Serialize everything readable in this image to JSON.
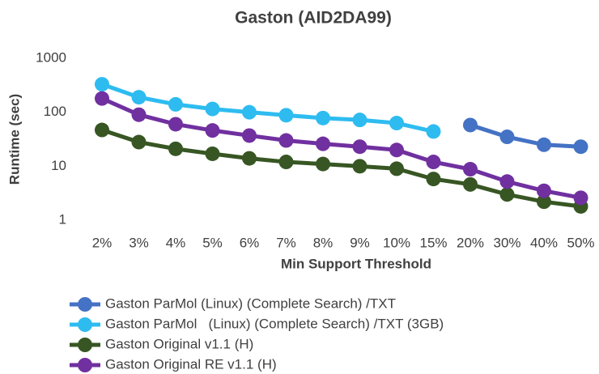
{
  "chart_data": {
    "type": "line",
    "title": "Gaston (AID2DA99)",
    "xlabel": "Min Support Threshold",
    "ylabel": "Runtime (sec)",
    "categories": [
      "2%",
      "3%",
      "4%",
      "5%",
      "6%",
      "7%",
      "8%",
      "9%",
      "10%",
      "15%",
      "20%",
      "30%",
      "40%",
      "50%"
    ],
    "ylim": [
      1,
      1000
    ],
    "yticks": [
      1,
      10,
      100,
      1000
    ],
    "log_scale": true,
    "grid": false,
    "legend": "bottom",
    "series": [
      {
        "name": "Gaston ParMol (Linux) (Complete Search) /TXT",
        "color": "#4472c4",
        "values": [
          null,
          null,
          null,
          null,
          null,
          null,
          null,
          null,
          null,
          null,
          58,
          35,
          25,
          23
        ]
      },
      {
        "name": "Gaston ParMol   (Linux) (Complete Search) /TXT (3GB)",
        "color": "#2ebcf0",
        "values": [
          330,
          190,
          140,
          115,
          100,
          88,
          78,
          72,
          63,
          44,
          null,
          null,
          null,
          null
        ]
      },
      {
        "name": "Gaston Original v1.1 (H)",
        "color": "#375623",
        "values": [
          47,
          28,
          21,
          17,
          14,
          12,
          11,
          10,
          9,
          5.8,
          4.6,
          3.0,
          2.2,
          1.8
        ]
      },
      {
        "name": "Gaston Original RE v1.1 (H)",
        "color": "#7030a0",
        "values": [
          180,
          90,
          60,
          46,
          37,
          30,
          26,
          23,
          20,
          12,
          8.8,
          5.2,
          3.5,
          2.6
        ]
      }
    ]
  }
}
